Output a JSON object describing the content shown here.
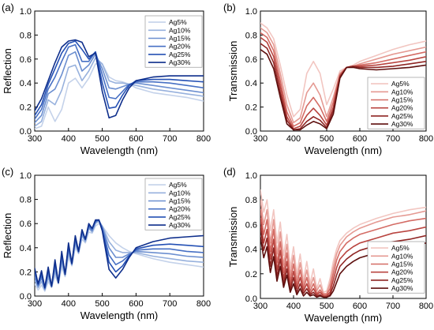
{
  "chart_data": [
    {
      "panel_label": "(a)",
      "type": "line",
      "xlabel": "Wavelength (nm)",
      "ylabel": "Reflection",
      "xlim": [
        300,
        800
      ],
      "ylim": [
        0.0,
        1.0
      ],
      "xticks": [
        300,
        400,
        500,
        600,
        700,
        800
      ],
      "yticks": [
        "0.0",
        "0.2",
        "0.4",
        "0.6",
        "0.8",
        "1.0"
      ],
      "grid": false,
      "legend_position": "top-right",
      "palette": [
        "#c4d2ea",
        "#97b1dd",
        "#6c8fd0",
        "#4770c4",
        "#2450b4",
        "#0f2f8c"
      ],
      "x": [
        300,
        320,
        340,
        360,
        380,
        400,
        420,
        440,
        460,
        480,
        500,
        520,
        540,
        560,
        580,
        600,
        650,
        700,
        750,
        800
      ],
      "series": [
        {
          "name": "Ag5%",
          "values": [
            0.02,
            0.04,
            0.2,
            0.08,
            0.18,
            0.4,
            0.44,
            0.36,
            0.44,
            0.56,
            0.56,
            0.45,
            0.42,
            0.41,
            0.39,
            0.36,
            0.32,
            0.3,
            0.28,
            0.25
          ]
        },
        {
          "name": "Ag10%",
          "values": [
            0.04,
            0.08,
            0.26,
            0.22,
            0.34,
            0.53,
            0.55,
            0.42,
            0.5,
            0.61,
            0.56,
            0.42,
            0.4,
            0.4,
            0.39,
            0.38,
            0.35,
            0.33,
            0.31,
            0.29
          ]
        },
        {
          "name": "Ag15%",
          "values": [
            0.07,
            0.13,
            0.31,
            0.35,
            0.47,
            0.63,
            0.66,
            0.5,
            0.55,
            0.64,
            0.52,
            0.36,
            0.35,
            0.37,
            0.39,
            0.4,
            0.38,
            0.36,
            0.34,
            0.32
          ]
        },
        {
          "name": "Ag20%",
          "values": [
            0.1,
            0.18,
            0.35,
            0.45,
            0.58,
            0.7,
            0.72,
            0.58,
            0.58,
            0.66,
            0.47,
            0.28,
            0.27,
            0.33,
            0.39,
            0.41,
            0.41,
            0.4,
            0.38,
            0.36
          ]
        },
        {
          "name": "Ag25%",
          "values": [
            0.13,
            0.22,
            0.39,
            0.52,
            0.65,
            0.73,
            0.75,
            0.68,
            0.6,
            0.66,
            0.4,
            0.19,
            0.2,
            0.3,
            0.38,
            0.42,
            0.43,
            0.43,
            0.42,
            0.41
          ]
        },
        {
          "name": "Ag30%",
          "values": [
            0.17,
            0.27,
            0.42,
            0.57,
            0.7,
            0.75,
            0.76,
            0.74,
            0.62,
            0.65,
            0.33,
            0.11,
            0.13,
            0.26,
            0.36,
            0.42,
            0.45,
            0.46,
            0.46,
            0.46
          ]
        }
      ]
    },
    {
      "panel_label": "(b)",
      "type": "line",
      "xlabel": "Wavelength (nm)",
      "ylabel": "Transmission",
      "xlim": [
        300,
        800
      ],
      "ylim": [
        0.0,
        1.0
      ],
      "xticks": [
        300,
        400,
        500,
        600,
        700,
        800
      ],
      "yticks": [
        "0.0",
        "0.2",
        "0.4",
        "0.6",
        "0.8",
        "1.0"
      ],
      "grid": false,
      "legend_position": "right",
      "palette": [
        "#f2c6c1",
        "#e59a93",
        "#d46c65",
        "#b94540",
        "#8f2523",
        "#5e0f0e"
      ],
      "x": [
        300,
        320,
        340,
        360,
        380,
        400,
        420,
        440,
        460,
        480,
        500,
        520,
        540,
        560,
        580,
        600,
        650,
        700,
        750,
        800
      ],
      "series": [
        {
          "name": "Ag5%",
          "values": [
            0.9,
            0.86,
            0.77,
            0.55,
            0.3,
            0.12,
            0.18,
            0.48,
            0.58,
            0.48,
            0.22,
            0.35,
            0.5,
            0.53,
            0.55,
            0.58,
            0.63,
            0.68,
            0.72,
            0.75
          ]
        },
        {
          "name": "Ag10%",
          "values": [
            0.86,
            0.82,
            0.72,
            0.48,
            0.22,
            0.07,
            0.11,
            0.32,
            0.4,
            0.3,
            0.12,
            0.28,
            0.48,
            0.53,
            0.54,
            0.56,
            0.6,
            0.64,
            0.67,
            0.7
          ]
        },
        {
          "name": "Ag15%",
          "values": [
            0.82,
            0.78,
            0.67,
            0.42,
            0.16,
            0.04,
            0.07,
            0.21,
            0.28,
            0.2,
            0.08,
            0.24,
            0.47,
            0.53,
            0.54,
            0.55,
            0.57,
            0.6,
            0.63,
            0.66
          ]
        },
        {
          "name": "Ag20%",
          "values": [
            0.78,
            0.74,
            0.62,
            0.37,
            0.12,
            0.02,
            0.04,
            0.13,
            0.19,
            0.13,
            0.05,
            0.2,
            0.46,
            0.53,
            0.54,
            0.54,
            0.55,
            0.57,
            0.59,
            0.62
          ]
        },
        {
          "name": "Ag25%",
          "values": [
            0.73,
            0.69,
            0.57,
            0.32,
            0.09,
            0.01,
            0.02,
            0.08,
            0.12,
            0.09,
            0.03,
            0.17,
            0.45,
            0.53,
            0.54,
            0.53,
            0.53,
            0.54,
            0.56,
            0.58
          ]
        },
        {
          "name": "Ag30%",
          "values": [
            0.68,
            0.64,
            0.52,
            0.28,
            0.06,
            0.01,
            0.01,
            0.05,
            0.08,
            0.06,
            0.02,
            0.14,
            0.44,
            0.53,
            0.53,
            0.52,
            0.51,
            0.52,
            0.53,
            0.55
          ]
        }
      ]
    },
    {
      "panel_label": "(c)",
      "type": "line",
      "xlabel": "Wavelength (nm)",
      "ylabel": "Reflection",
      "xlim": [
        300,
        800
      ],
      "ylim": [
        0.0,
        1.0
      ],
      "xticks": [
        300,
        400,
        500,
        600,
        700,
        800
      ],
      "yticks": [
        "0.0",
        "0.2",
        "0.4",
        "0.6",
        "0.8",
        "1.0"
      ],
      "grid": false,
      "legend_position": "top-right",
      "palette": [
        "#c4d2ea",
        "#97b1dd",
        "#6c8fd0",
        "#4770c4",
        "#2450b4",
        "#0f2f8c"
      ],
      "x": [
        300,
        310,
        320,
        330,
        340,
        350,
        360,
        370,
        380,
        390,
        400,
        410,
        420,
        430,
        440,
        450,
        460,
        470,
        480,
        490,
        500,
        520,
        540,
        560,
        580,
        600,
        650,
        700,
        750,
        800
      ],
      "series": [
        {
          "name": "Ag5%",
          "values": [
            0.1,
            0.05,
            0.09,
            0.04,
            0.12,
            0.07,
            0.17,
            0.1,
            0.24,
            0.16,
            0.32,
            0.25,
            0.4,
            0.35,
            0.47,
            0.44,
            0.53,
            0.52,
            0.58,
            0.6,
            0.58,
            0.5,
            0.44,
            0.4,
            0.37,
            0.35,
            0.31,
            0.28,
            0.26,
            0.24
          ]
        },
        {
          "name": "Ag10%",
          "values": [
            0.13,
            0.07,
            0.12,
            0.05,
            0.15,
            0.08,
            0.2,
            0.11,
            0.27,
            0.17,
            0.35,
            0.26,
            0.43,
            0.36,
            0.5,
            0.45,
            0.56,
            0.53,
            0.6,
            0.62,
            0.58,
            0.45,
            0.38,
            0.36,
            0.36,
            0.36,
            0.33,
            0.31,
            0.29,
            0.28
          ]
        },
        {
          "name": "Ag15%",
          "values": [
            0.16,
            0.08,
            0.15,
            0.06,
            0.18,
            0.08,
            0.23,
            0.11,
            0.3,
            0.18,
            0.38,
            0.26,
            0.45,
            0.36,
            0.51,
            0.46,
            0.57,
            0.54,
            0.61,
            0.63,
            0.57,
            0.4,
            0.32,
            0.32,
            0.35,
            0.37,
            0.36,
            0.35,
            0.33,
            0.32
          ]
        },
        {
          "name": "Ag20%",
          "values": [
            0.19,
            0.09,
            0.17,
            0.06,
            0.2,
            0.08,
            0.26,
            0.11,
            0.33,
            0.18,
            0.4,
            0.27,
            0.47,
            0.37,
            0.53,
            0.47,
            0.58,
            0.55,
            0.62,
            0.63,
            0.56,
            0.34,
            0.26,
            0.29,
            0.34,
            0.38,
            0.39,
            0.39,
            0.37,
            0.36
          ]
        },
        {
          "name": "Ag25%",
          "values": [
            0.21,
            0.1,
            0.19,
            0.07,
            0.22,
            0.08,
            0.28,
            0.11,
            0.35,
            0.18,
            0.42,
            0.27,
            0.48,
            0.37,
            0.54,
            0.47,
            0.59,
            0.56,
            0.62,
            0.63,
            0.55,
            0.28,
            0.2,
            0.25,
            0.33,
            0.39,
            0.42,
            0.43,
            0.42,
            0.41
          ]
        },
        {
          "name": "Ag30%",
          "values": [
            0.23,
            0.1,
            0.21,
            0.07,
            0.24,
            0.08,
            0.3,
            0.11,
            0.37,
            0.18,
            0.44,
            0.27,
            0.5,
            0.37,
            0.55,
            0.47,
            0.6,
            0.56,
            0.63,
            0.63,
            0.54,
            0.22,
            0.15,
            0.22,
            0.32,
            0.4,
            0.45,
            0.48,
            0.49,
            0.5
          ]
        }
      ]
    },
    {
      "panel_label": "(d)",
      "type": "line",
      "xlabel": "Wavelength (nm)",
      "ylabel": "Transmission",
      "xlim": [
        300,
        800
      ],
      "ylim": [
        0.0,
        1.0
      ],
      "xticks": [
        300,
        400,
        500,
        600,
        700,
        800
      ],
      "yticks": [
        "0.0",
        "0.2",
        "0.4",
        "0.6",
        "0.8",
        "1.0"
      ],
      "grid": false,
      "legend_position": "bottom-right",
      "palette": [
        "#f2c6c1",
        "#e59a93",
        "#d46c65",
        "#b94540",
        "#8f2523",
        "#5e0f0e"
      ],
      "x": [
        300,
        310,
        320,
        330,
        340,
        350,
        360,
        370,
        380,
        390,
        400,
        410,
        420,
        430,
        440,
        450,
        460,
        470,
        480,
        490,
        500,
        510,
        520,
        530,
        540,
        560,
        580,
        600,
        650,
        700,
        750,
        800
      ],
      "series": [
        {
          "name": "Ag5%",
          "values": [
            0.88,
            0.7,
            0.8,
            0.55,
            0.72,
            0.45,
            0.62,
            0.35,
            0.52,
            0.25,
            0.42,
            0.2,
            0.36,
            0.15,
            0.3,
            0.12,
            0.24,
            0.08,
            0.16,
            0.05,
            0.06,
            0.16,
            0.3,
            0.4,
            0.47,
            0.53,
            0.57,
            0.6,
            0.65,
            0.69,
            0.72,
            0.74
          ]
        },
        {
          "name": "Ag10%",
          "values": [
            0.8,
            0.6,
            0.72,
            0.45,
            0.64,
            0.36,
            0.54,
            0.27,
            0.44,
            0.19,
            0.35,
            0.15,
            0.29,
            0.11,
            0.23,
            0.09,
            0.17,
            0.06,
            0.11,
            0.04,
            0.04,
            0.12,
            0.25,
            0.36,
            0.43,
            0.5,
            0.54,
            0.57,
            0.62,
            0.66,
            0.68,
            0.71
          ]
        },
        {
          "name": "Ag15%",
          "values": [
            0.72,
            0.52,
            0.64,
            0.38,
            0.56,
            0.29,
            0.46,
            0.21,
            0.37,
            0.14,
            0.28,
            0.11,
            0.23,
            0.08,
            0.17,
            0.06,
            0.12,
            0.04,
            0.07,
            0.03,
            0.03,
            0.08,
            0.2,
            0.31,
            0.38,
            0.45,
            0.49,
            0.52,
            0.56,
            0.6,
            0.63,
            0.65
          ]
        },
        {
          "name": "Ag20%",
          "values": [
            0.65,
            0.45,
            0.56,
            0.32,
            0.48,
            0.23,
            0.39,
            0.16,
            0.3,
            0.1,
            0.22,
            0.08,
            0.17,
            0.06,
            0.12,
            0.04,
            0.08,
            0.03,
            0.05,
            0.02,
            0.02,
            0.05,
            0.15,
            0.25,
            0.32,
            0.38,
            0.42,
            0.45,
            0.49,
            0.53,
            0.55,
            0.58
          ]
        },
        {
          "name": "Ag25%",
          "values": [
            0.58,
            0.39,
            0.49,
            0.26,
            0.41,
            0.18,
            0.32,
            0.12,
            0.24,
            0.07,
            0.17,
            0.05,
            0.12,
            0.04,
            0.08,
            0.03,
            0.05,
            0.02,
            0.03,
            0.01,
            0.01,
            0.03,
            0.1,
            0.19,
            0.26,
            0.32,
            0.36,
            0.39,
            0.43,
            0.46,
            0.48,
            0.51
          ]
        },
        {
          "name": "Ag30%",
          "values": [
            0.5,
            0.33,
            0.42,
            0.21,
            0.34,
            0.14,
            0.26,
            0.09,
            0.19,
            0.05,
            0.12,
            0.03,
            0.08,
            0.02,
            0.05,
            0.02,
            0.03,
            0.01,
            0.02,
            0.01,
            0.01,
            0.02,
            0.06,
            0.13,
            0.2,
            0.26,
            0.3,
            0.33,
            0.37,
            0.4,
            0.42,
            0.45
          ]
        }
      ]
    }
  ]
}
